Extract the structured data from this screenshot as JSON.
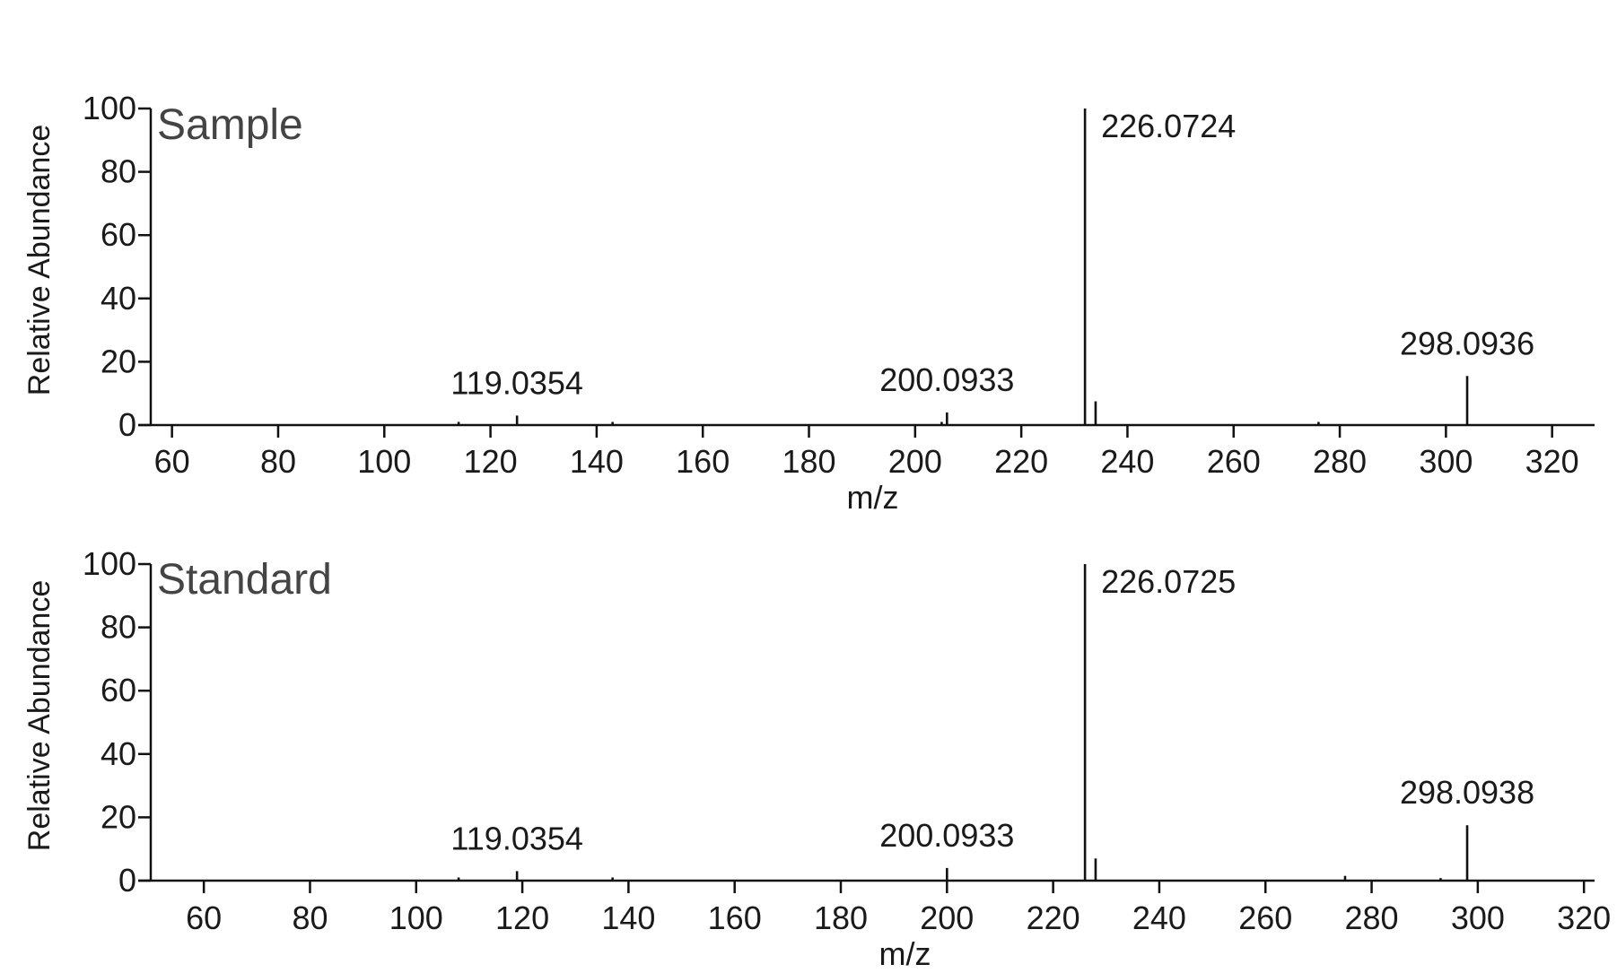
{
  "chart_data": [
    {
      "type": "bar",
      "panel_label": "Sample",
      "xlabel": "m/z",
      "ylabel": "Relative Abundance",
      "xlim": [
        56,
        328
      ],
      "ylim": [
        0,
        100
      ],
      "xticks": [
        60,
        80,
        100,
        120,
        140,
        160,
        180,
        200,
        220,
        240,
        260,
        280,
        300,
        320
      ],
      "yticks": [
        0,
        20,
        40,
        60,
        80,
        100
      ],
      "peaks": [
        {
          "x": 114.0,
          "y": 1.0
        },
        {
          "x": 125.0,
          "y": 3.0,
          "label": "119.0354"
        },
        {
          "x": 143.0,
          "y": 1.0
        },
        {
          "x": 205.0,
          "y": 1.0
        },
        {
          "x": 206.0,
          "y": 4.0,
          "label": "200.0933"
        },
        {
          "x": 232.0,
          "y": 100.0,
          "label": "226.0724"
        },
        {
          "x": 234.0,
          "y": 7.5
        },
        {
          "x": 276.0,
          "y": 1.0
        },
        {
          "x": 304.0,
          "y": 15.5,
          "label": "298.0936"
        }
      ]
    },
    {
      "type": "bar",
      "panel_label": "Standard",
      "xlabel": "m/z",
      "ylabel": "Relative Abundance",
      "xlim": [
        50,
        322
      ],
      "ylim": [
        0,
        100
      ],
      "xticks": [
        60,
        80,
        100,
        120,
        140,
        160,
        180,
        200,
        220,
        240,
        260,
        280,
        300,
        320
      ],
      "yticks": [
        0,
        20,
        40,
        60,
        80,
        100
      ],
      "peaks": [
        {
          "x": 108.0,
          "y": 1.0
        },
        {
          "x": 119.0,
          "y": 3.0,
          "label": "119.0354"
        },
        {
          "x": 137.0,
          "y": 1.0
        },
        {
          "x": 200.0,
          "y": 4.0,
          "label": "200.0933"
        },
        {
          "x": 226.0,
          "y": 100.0,
          "label": "226.0725"
        },
        {
          "x": 228.0,
          "y": 7.0
        },
        {
          "x": 275.0,
          "y": 1.5
        },
        {
          "x": 293.0,
          "y": 0.8
        },
        {
          "x": 298.0,
          "y": 17.5,
          "label": "298.0938"
        }
      ]
    }
  ]
}
